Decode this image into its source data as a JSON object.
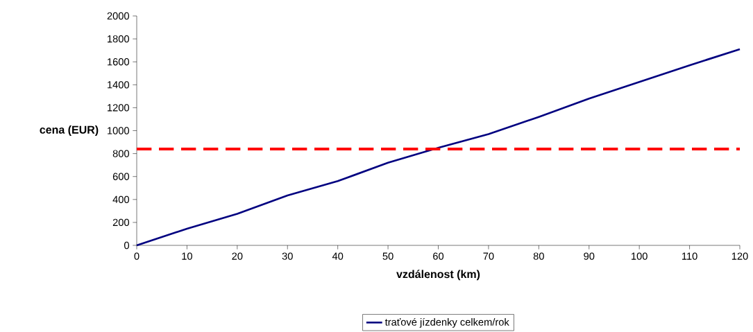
{
  "chart_data": {
    "type": "line",
    "xlabel": "vzdálenost (km)",
    "ylabel": "cena (EUR)",
    "x": [
      0,
      10,
      20,
      30,
      40,
      50,
      60,
      70,
      80,
      90,
      100,
      110,
      120
    ],
    "series": [
      {
        "name": "traťové jízdenky celkem/rok",
        "color": "#000080",
        "values": [
          0,
          145,
          275,
          435,
          560,
          720,
          850,
          970,
          1120,
          1280,
          1425,
          1570,
          1710
        ]
      }
    ],
    "ref_lines": [
      {
        "axis": "y",
        "value": 840,
        "color": "#ff0000",
        "line_style": "dashed"
      }
    ],
    "xlim": [
      0,
      120
    ],
    "xticks": [
      0,
      10,
      20,
      30,
      40,
      50,
      60,
      70,
      80,
      90,
      100,
      110,
      120
    ],
    "ylim": [
      0,
      2000
    ],
    "yticks": [
      0,
      200,
      400,
      600,
      800,
      1000,
      1200,
      1400,
      1600,
      1800,
      2000
    ],
    "grid": false,
    "legend": "bottom",
    "marker": "none",
    "line_style": "solid"
  }
}
